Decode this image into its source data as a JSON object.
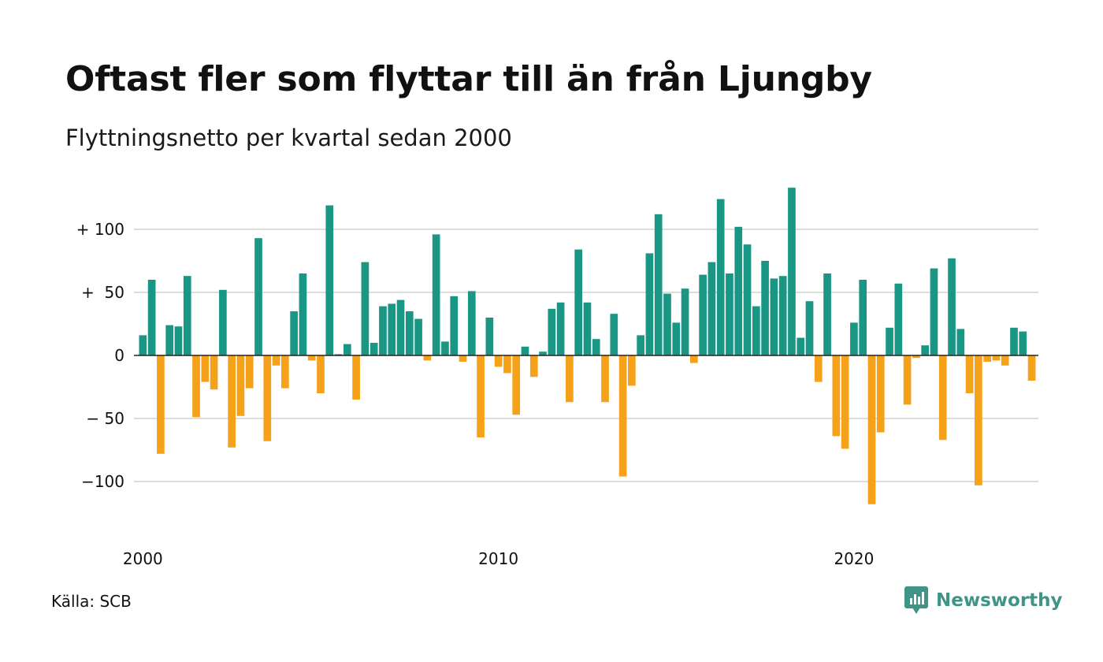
{
  "title": "Oftast fler som flyttar till än från Ljungby",
  "subtitle": "Flyttningsnetto per kvartal sedan 2000",
  "source": "Källa: SCB",
  "brand": {
    "name": "Newsworthy",
    "icon": "bar-chart-speech-bubble-icon",
    "color": "#3f9486"
  },
  "colors": {
    "positive": "#1a9685",
    "negative": "#f5a11a",
    "grid": "#dddddd",
    "zero_line": "#222222"
  },
  "chart_data": {
    "type": "bar",
    "title": "Oftast fler som flyttar till än från Ljungby",
    "subtitle": "Flyttningsnetto per kvartal sedan 2000",
    "xlabel": "",
    "ylabel": "",
    "ylim": [
      -135,
      135
    ],
    "y_ticks": [
      {
        "value": 100,
        "label": "+ 100"
      },
      {
        "value": 50,
        "label": "+  50"
      },
      {
        "value": 0,
        "label": "0"
      },
      {
        "value": -50,
        "label": "− 50"
      },
      {
        "value": -100,
        "label": "−100"
      }
    ],
    "x_ticks": [
      "2000",
      "2010",
      "2020"
    ],
    "grid": true,
    "legend": false,
    "categories": [
      "2000 K1",
      "2000 K2",
      "2000 K3",
      "2000 K4",
      "2001 K1",
      "2001 K2",
      "2001 K3",
      "2001 K4",
      "2002 K1",
      "2002 K2",
      "2002 K3",
      "2002 K4",
      "2003 K1",
      "2003 K2",
      "2003 K3",
      "2003 K4",
      "2004 K1",
      "2004 K2",
      "2004 K3",
      "2004 K4",
      "2005 K1",
      "2005 K2",
      "2005 K3",
      "2005 K4",
      "2006 K1",
      "2006 K2",
      "2006 K3",
      "2006 K4",
      "2007 K1",
      "2007 K2",
      "2007 K3",
      "2007 K4",
      "2008 K1",
      "2008 K2",
      "2008 K3",
      "2008 K4",
      "2009 K1",
      "2009 K2",
      "2009 K3",
      "2009 K4",
      "2010 K1",
      "2010 K2",
      "2010 K3",
      "2010 K4",
      "2011 K1",
      "2011 K2",
      "2011 K3",
      "2011 K4",
      "2012 K1",
      "2012 K2",
      "2012 K3",
      "2012 K4",
      "2013 K1",
      "2013 K2",
      "2013 K3",
      "2013 K4",
      "2014 K1",
      "2014 K2",
      "2014 K3",
      "2014 K4",
      "2015 K1",
      "2015 K2",
      "2015 K3",
      "2015 K4",
      "2016 K1",
      "2016 K2",
      "2016 K3",
      "2016 K4",
      "2017 K1",
      "2017 K2",
      "2017 K3",
      "2017 K4",
      "2018 K1",
      "2018 K2",
      "2018 K3",
      "2018 K4",
      "2019 K1",
      "2019 K2",
      "2019 K3",
      "2019 K4",
      "2020 K1",
      "2020 K2",
      "2020 K3",
      "2020 K4",
      "2021 K1",
      "2021 K2",
      "2021 K3",
      "2021 K4",
      "2022 K1",
      "2022 K2",
      "2022 K3",
      "2022 K4",
      "2023 K1",
      "2023 K2",
      "2023 K3",
      "2023 K4",
      "2024 K1",
      "2024 K2",
      "2024 K3",
      "2024 K4",
      "2025 K1"
    ],
    "values": [
      16,
      60,
      -78,
      24,
      23,
      63,
      -49,
      -21,
      -27,
      52,
      -73,
      -48,
      -26,
      93,
      -68,
      -8,
      -26,
      35,
      65,
      -4,
      -30,
      119,
      1,
      9,
      -35,
      74,
      10,
      39,
      41,
      44,
      35,
      29,
      -4,
      96,
      11,
      47,
      -5,
      51,
      -65,
      30,
      -9,
      -14,
      -47,
      7,
      -17,
      3,
      37,
      42,
      -37,
      84,
      42,
      13,
      -37,
      33,
      -96,
      -24,
      16,
      81,
      112,
      49,
      26,
      53,
      -6,
      64,
      74,
      124,
      65,
      102,
      88,
      39,
      75,
      61,
      63,
      133,
      14,
      43,
      -21,
      65,
      -64,
      -74,
      26,
      60,
      -118,
      -61,
      22,
      57,
      -39,
      -2,
      8,
      69,
      -67,
      77,
      21,
      -30,
      -103,
      -5,
      -4,
      -8,
      22,
      19,
      -20
    ]
  }
}
